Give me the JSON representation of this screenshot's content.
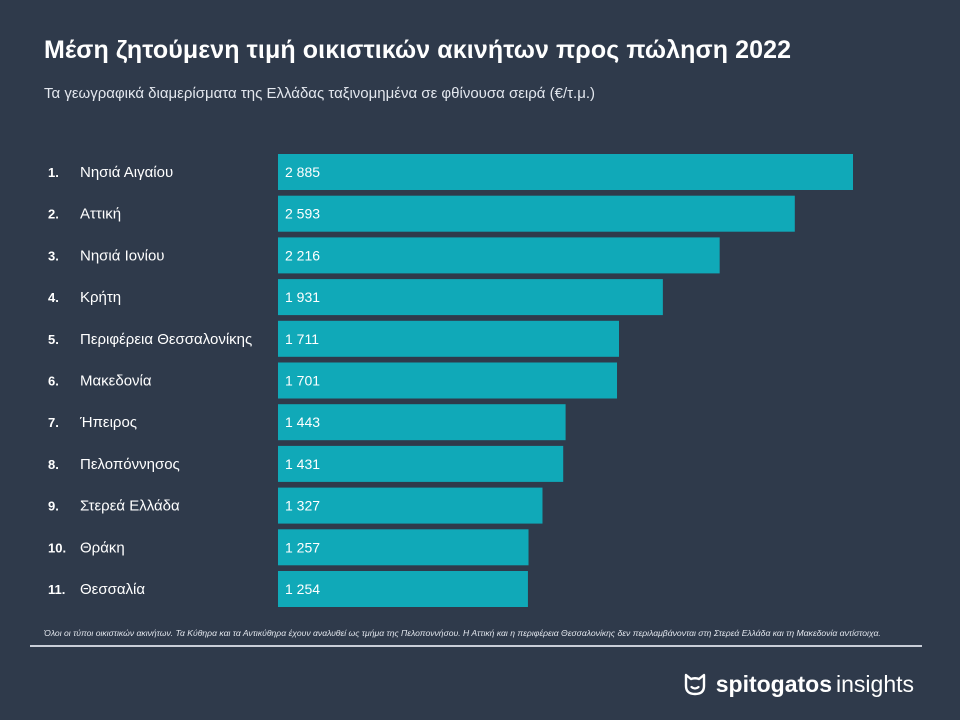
{
  "chart_data": {
    "type": "bar",
    "orientation": "horizontal",
    "title": "Μέση ζητούμενη τιμή οικιστικών ακινήτων προς πώληση 2022",
    "subtitle": "Τα γεωγραφικά διαμερίσματα της Ελλάδας ταξινομημένα σε φθίνουσα σειρά (€/τ.μ.)",
    "ranks": [
      "1.",
      "2.",
      "3.",
      "4.",
      "5.",
      "6.",
      "7.",
      "8.",
      "9.",
      "10.",
      "11."
    ],
    "categories": [
      "Νησιά Αιγαίου",
      "Αττική",
      "Νησιά Ιονίου",
      "Κρήτη",
      "Περιφέρεια Θεσσαλονίκης",
      "Μακεδονία",
      "Ήπειρος",
      "Πελοπόννησος",
      "Στερεά Ελλάδα",
      "Θράκη",
      "Θεσσαλία"
    ],
    "values": [
      2885,
      2593,
      2216,
      1931,
      1711,
      1701,
      1443,
      1431,
      1327,
      1257,
      1254
    ],
    "value_labels": [
      "2 885",
      "2 593",
      "2 216",
      "1 931",
      "1 711",
      "1 701",
      "1 443",
      "1 431",
      "1 327",
      "1 257",
      "1 254"
    ],
    "xlim": [
      0,
      3000
    ],
    "grid": false,
    "legend": "none",
    "bar_color": "#10a9b8"
  },
  "footnote": "Όλοι οι τύποι οικιστικών ακινήτων. Τα Κύθηρα και τα Αντικύθηρα έχουν αναλυθεί ως τμήμα της Πελοποννήσου. Η Αττική και η περιφέρεια Θεσσαλονίκης δεν περιλαμβάνονται στη Στερεά Ελλάδα και τη Μακεδονία αντίστοιχα.",
  "logo": {
    "brand": "spitogatos",
    "sub": "insights",
    "icon": "cat-face-icon"
  }
}
